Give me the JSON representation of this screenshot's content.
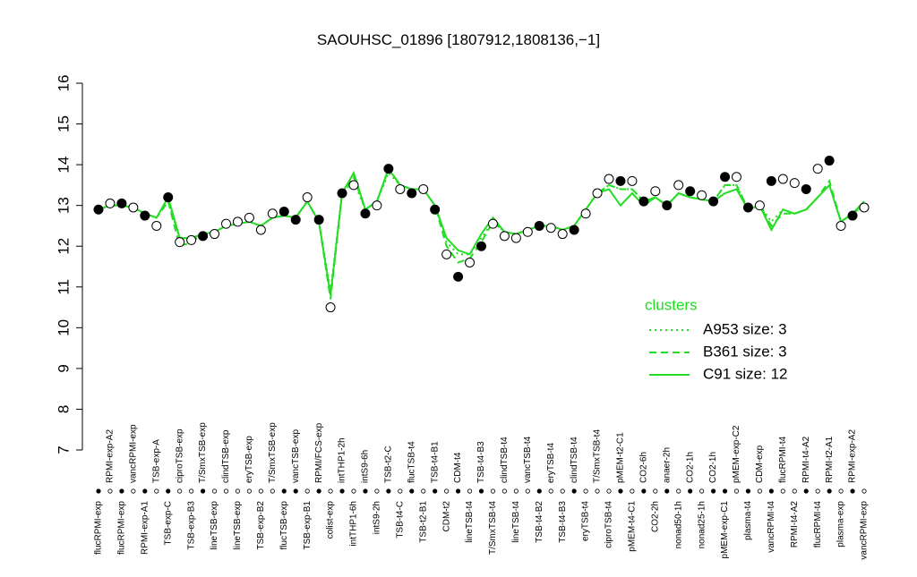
{
  "chart_data": {
    "type": "scatter",
    "title": "SAOUHSC_01896 [1807912,1808136,−1]",
    "ylim": [
      7,
      16
    ],
    "yticks": [
      7,
      8,
      9,
      10,
      11,
      12,
      13,
      14,
      15,
      16
    ],
    "categories": [
      "flucRPMI-exp",
      "RPMI-exp-A2",
      "flucRPMI-exp",
      "vancRPMI-exp",
      "RPMI-exp-A1",
      "TSB-exp-A",
      "TSB-exp-C",
      "ciproTSB-exp",
      "TSB-exp-B3",
      "T/SmxTSB-exp",
      "lineTSB-exp",
      "clindTSB-exp",
      "lineTSB-exp",
      "eryTSB-exp",
      "TSB-exp-B2",
      "T/SmxTSB-exp",
      "flucTSB-exp",
      "vancTSB-exp",
      "TSB-exp-B1",
      "RPMI/FCS-exp",
      "colist-exp",
      "intTHP1-2h",
      "intTHP1-6h",
      "intS9-6h",
      "intS9-2h",
      "TSB-t2-C",
      "TSB-t4-C",
      "flucTSB-t4",
      "TSB-t2-B1",
      "TSB-t4-B1",
      "CDM-t2",
      "CDM-t4",
      "lineTSB-t4",
      "TSB-t4-B3",
      "T/SmxTSB-t4",
      "clindTSB-t4",
      "lineTSB-t4",
      "vancTSB-t4",
      "TSB-t4-B2",
      "eryTSB-t4",
      "TSB-t4-B3",
      "clindTSB-t4",
      "eryTSB-t4",
      "T/SmxTSB-t4",
      "ciproTSB-t4",
      "pMEM-t2-C1",
      "pMEM-t4-C1",
      "CO2-6h",
      "CO2-2h",
      "anaer-2h",
      "nonad50-1h",
      "CO2-1h",
      "nonad25-1h",
      "CO2-1h",
      "pMEM-exp-C1",
      "pMEM-exp-C2",
      "plasma-t4",
      "CDM-exp",
      "vancRPMI-t4",
      "flucRPMI-t4",
      "RPMI-t4-A2",
      "RPMI-t4-A2",
      "flucRPMI-t4",
      "RPMI-t2-A1",
      "plasma-exp",
      "RPMI-exp-A2",
      "vancRPMI-exp"
    ],
    "values": [
      12.9,
      13.05,
      13.05,
      12.95,
      12.75,
      12.5,
      13.2,
      12.1,
      12.15,
      12.25,
      12.3,
      12.55,
      12.6,
      12.7,
      12.4,
      12.8,
      12.85,
      12.65,
      13.2,
      12.65,
      10.5,
      13.3,
      13.5,
      12.8,
      13.0,
      13.9,
      13.4,
      13.3,
      13.4,
      12.9,
      11.8,
      11.25,
      11.6,
      12.0,
      12.55,
      12.25,
      12.2,
      12.35,
      12.5,
      12.45,
      12.3,
      12.4,
      12.8,
      13.3,
      13.65,
      13.6,
      13.6,
      13.1,
      13.35,
      13.0,
      13.5,
      13.35,
      13.25,
      13.1,
      13.7,
      13.7,
      12.95,
      13.0,
      13.6,
      13.65,
      13.55,
      13.4,
      13.9,
      14.1,
      12.5,
      12.75,
      12.95
    ],
    "fills": [
      "black",
      "white",
      "black",
      "white",
      "black",
      "white",
      "black",
      "white",
      "white",
      "black",
      "white",
      "white",
      "white",
      "white",
      "white",
      "white",
      "black",
      "black",
      "white",
      "black",
      "white",
      "black",
      "white",
      "black",
      "white",
      "black",
      "white",
      "black",
      "white",
      "black",
      "white",
      "black",
      "white",
      "black",
      "white",
      "white",
      "white",
      "white",
      "black",
      "white",
      "white",
      "black",
      "white",
      "white",
      "white",
      "black",
      "white",
      "black",
      "white",
      "black",
      "white",
      "black",
      "white",
      "black",
      "black",
      "white",
      "black",
      "white",
      "black",
      "white",
      "white",
      "black",
      "white",
      "black",
      "white",
      "black",
      "white"
    ],
    "legend_title": "clusters",
    "series": [
      {
        "name": "A953 size: 3",
        "style": "dotted",
        "color": "#22dd22",
        "values": [
          12.9,
          13.0,
          13.0,
          12.95,
          12.8,
          12.7,
          13.1,
          12.2,
          12.2,
          12.3,
          12.35,
          12.5,
          12.55,
          12.6,
          12.5,
          12.7,
          12.75,
          12.7,
          13.1,
          12.6,
          10.9,
          13.3,
          13.6,
          12.9,
          13.1,
          13.8,
          13.5,
          13.4,
          13.4,
          13.0,
          12.1,
          11.8,
          11.8,
          12.2,
          12.6,
          12.35,
          12.3,
          12.4,
          12.5,
          12.5,
          12.4,
          12.5,
          12.9,
          13.3,
          13.5,
          13.4,
          13.4,
          13.1,
          13.2,
          13.0,
          13.3,
          13.2,
          13.15,
          13.1,
          13.5,
          13.5,
          12.9,
          13.0,
          12.6,
          12.9,
          12.8,
          12.9,
          13.2,
          13.5,
          12.6,
          12.8,
          13.0
        ]
      },
      {
        "name": "B361 size: 3",
        "style": "dashed",
        "color": "#22dd22",
        "values": [
          12.9,
          13.0,
          13.0,
          12.95,
          12.8,
          12.7,
          13.1,
          12.0,
          12.1,
          12.3,
          12.35,
          12.5,
          12.55,
          12.6,
          12.5,
          12.7,
          12.75,
          12.7,
          13.1,
          12.6,
          10.7,
          13.3,
          13.7,
          12.9,
          13.1,
          13.9,
          13.5,
          13.4,
          13.4,
          13.0,
          12.0,
          11.6,
          11.7,
          12.1,
          12.6,
          12.35,
          12.3,
          12.4,
          12.5,
          12.5,
          12.4,
          12.5,
          12.9,
          13.3,
          13.5,
          13.4,
          13.4,
          13.1,
          13.2,
          13.0,
          13.3,
          13.2,
          13.15,
          13.1,
          13.5,
          13.5,
          12.9,
          13.0,
          12.5,
          12.8,
          12.8,
          12.9,
          13.2,
          13.6,
          12.6,
          12.8,
          13.0
        ]
      },
      {
        "name": "C91 size: 12",
        "style": "solid",
        "color": "#22dd22",
        "values": [
          12.9,
          13.0,
          13.0,
          12.95,
          12.8,
          12.7,
          13.2,
          12.2,
          12.2,
          12.3,
          12.35,
          12.5,
          12.55,
          12.6,
          12.5,
          12.7,
          12.75,
          12.7,
          13.1,
          12.6,
          10.8,
          13.3,
          13.8,
          12.9,
          13.1,
          13.9,
          13.5,
          13.4,
          13.4,
          13.0,
          12.2,
          11.9,
          11.8,
          12.3,
          12.7,
          12.35,
          12.3,
          12.4,
          12.5,
          12.5,
          12.4,
          12.5,
          12.9,
          13.3,
          13.4,
          13.0,
          13.3,
          13.0,
          13.2,
          13.0,
          13.3,
          13.2,
          13.15,
          13.1,
          13.3,
          13.4,
          12.9,
          13.0,
          12.4,
          12.9,
          12.8,
          12.9,
          13.2,
          13.5,
          12.6,
          12.8,
          13.1
        ]
      }
    ]
  }
}
